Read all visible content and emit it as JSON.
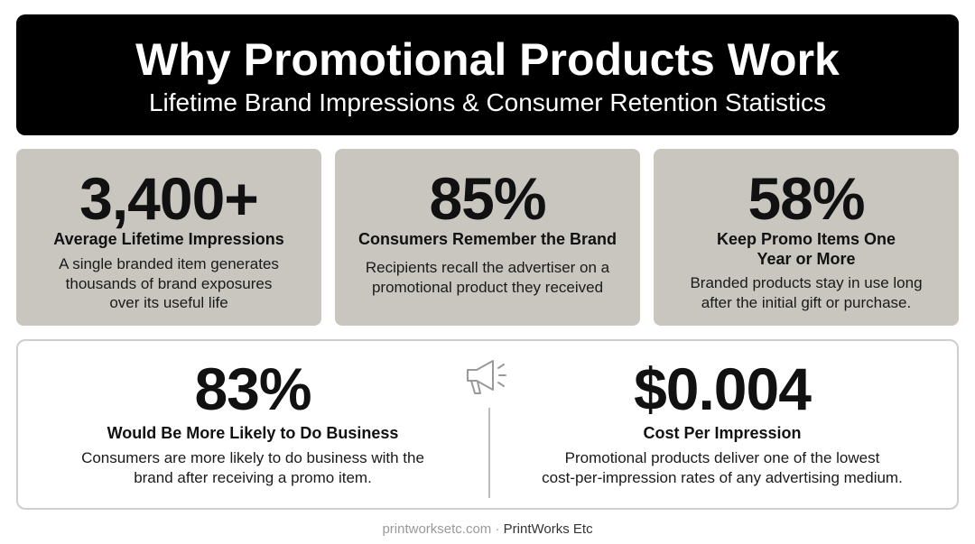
{
  "header": {
    "title": "Why Promotional Products Work",
    "subtitle": "Lifetime Brand Impressions & Consumer Retention Statistics"
  },
  "stats": [
    {
      "value": "3,400+",
      "label": [
        "Average Lifetime Impressions"
      ],
      "description": [
        "A single branded item generates",
        "thousands of brand exposures",
        "over its useful life"
      ]
    },
    {
      "value": "85%",
      "label": [
        "Consumers Remember the Brand"
      ],
      "description": [
        "Recipients recall the advertiser on a",
        "promotional product they received"
      ]
    },
    {
      "value": "58%",
      "label": [
        "Keep Promo Items One",
        "Year or More"
      ],
      "description": [
        "Branded products stay in use long",
        "after the initial gift or purchase."
      ]
    },
    {
      "value": "83%",
      "label": [
        "Would Be More Likely to Do Business"
      ],
      "description": [
        "Consumers are more likely to do business with the",
        "brand after receiving a promo item."
      ]
    },
    {
      "value": "$0.004",
      "label": [
        "Cost Per Impression"
      ],
      "description": [
        "Promotional products deliver one of the lowest",
        "cost-per-impression rates of any advertising medium."
      ]
    }
  ],
  "footer": {
    "site": "printworksetc.com",
    "brand": "PrintWorks Etc"
  }
}
